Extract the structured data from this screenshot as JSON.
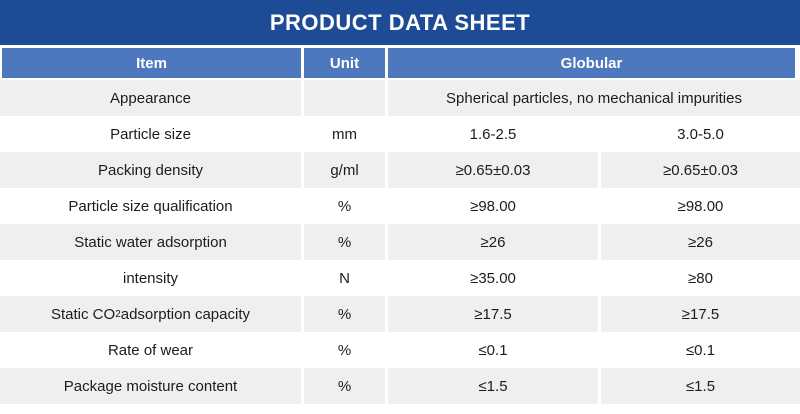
{
  "title": "PRODUCT DATA SHEET",
  "colors": {
    "title_bar_bg": "#1e4b96",
    "header_bg": "#4e78bd",
    "row_alt_bg": "#efefef",
    "row_bg": "#ffffff",
    "text": "#1c1c1c",
    "header_text": "#ffffff"
  },
  "table": {
    "headers": {
      "item": "Item",
      "unit": "Unit",
      "product": "Globular"
    },
    "rows": [
      {
        "item": "Appearance",
        "unit": "",
        "value_span": "Spherical particles, no mechanical impurities"
      },
      {
        "item": "Particle size",
        "unit": "mm",
        "v1": "1.6-2.5",
        "v2": "3.0-5.0"
      },
      {
        "item": "Packing density",
        "unit": "g/ml",
        "v1": "≥0.65±0.03",
        "v2": "≥0.65±0.03"
      },
      {
        "item": "Particle size qualification",
        "unit": "%",
        "v1": "≥98.00",
        "v2": "≥98.00"
      },
      {
        "item": "Static water adsorption",
        "unit": "%",
        "v1": "≥26",
        "v2": "≥26"
      },
      {
        "item": "intensity",
        "unit": "N",
        "v1": "≥35.00",
        "v2": "≥80"
      },
      {
        "item_parts": [
          "Static CO",
          "2",
          " adsorption capacity"
        ],
        "unit": "%",
        "v1": "≥17.5",
        "v2": "≥17.5"
      },
      {
        "item": "Rate of wear",
        "unit": "%",
        "v1": "≤0.1",
        "v2": "≤0.1"
      },
      {
        "item": "Package moisture content",
        "unit": "%",
        "v1": "≤1.5",
        "v2": "≤1.5"
      }
    ]
  }
}
